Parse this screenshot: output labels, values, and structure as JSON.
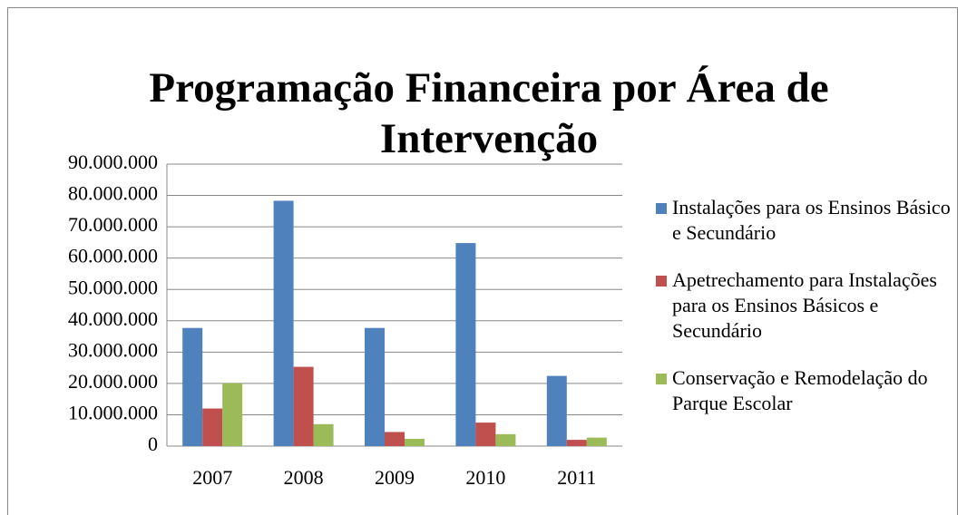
{
  "chart_data": {
    "type": "bar",
    "title": "Programação Financeira por Área de Intervenção",
    "categories": [
      "2007",
      "2008",
      "2009",
      "2010",
      "2011"
    ],
    "series": [
      {
        "name": "Instalações para os Ensinos Básico e Secundário",
        "color": "#4f81bd",
        "values": [
          37700000,
          78300000,
          37700000,
          64800000,
          22400000
        ]
      },
      {
        "name": "Apetrechamento para Instalações para os Ensinos Básicos e Secundário",
        "color": "#c0504d",
        "values": [
          12000000,
          25300000,
          4500000,
          7500000,
          2000000
        ]
      },
      {
        "name": "Conservação e Remodelação do Parque Escolar",
        "color": "#9bbb59",
        "values": [
          20000000,
          7000000,
          2300000,
          3800000,
          2700000
        ]
      }
    ],
    "ylim": [
      0,
      90000000
    ],
    "yticks": [
      0,
      {
        "value": 10000000,
        "label": "10.000.000"
      },
      {
        "value": 20000000,
        "label": "20.000.000"
      },
      {
        "value": 30000000,
        "label": "30.000.000"
      },
      {
        "value": 40000000,
        "label": "40.000.000"
      },
      {
        "value": 50000000,
        "label": "50.000.000"
      },
      {
        "value": 60000000,
        "label": "60.000.000"
      },
      {
        "value": 70000000,
        "label": "70.000.000"
      },
      {
        "value": 80000000,
        "label": "80.000.000"
      },
      {
        "value": 90000000,
        "label": "90.000.000"
      }
    ],
    "grid": true,
    "legend": "right"
  }
}
